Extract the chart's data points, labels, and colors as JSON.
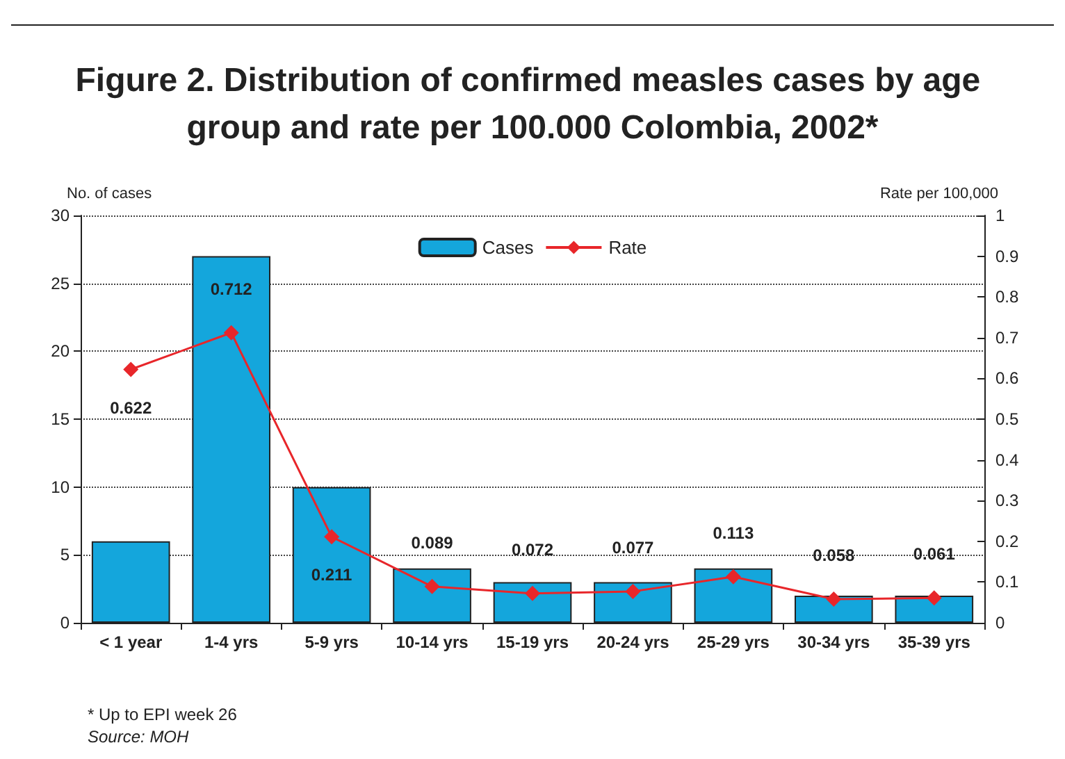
{
  "chart_data": {
    "type": "bar",
    "title": "Figure 2. Distribution of confirmed measles cases by age group and rate per 100.000 Colombia, 2002*",
    "ylabel": "No. of cases",
    "y2label": "Rate per 100,000",
    "categories": [
      "< 1 year",
      "1-4 yrs",
      "5-9 yrs",
      "10-14 yrs",
      "15-19 yrs",
      "20-24 yrs",
      "25-29 yrs",
      "30-34 yrs",
      "35-39 yrs"
    ],
    "series": [
      {
        "name": "Cases",
        "color": "#14a6dc",
        "values": [
          6,
          27,
          10,
          4,
          3,
          3,
          4,
          2,
          2
        ]
      },
      {
        "name": "Rate",
        "type": "line",
        "axis": "y2",
        "color": "#e8262a",
        "marker": "diamond",
        "values": [
          0.622,
          0.712,
          0.211,
          0.089,
          0.072,
          0.077,
          0.113,
          0.058,
          0.061
        ],
        "value_labels": [
          "0.622",
          "0.712",
          "0.211",
          "0.089",
          "0.072",
          "0.077",
          "0.113",
          "0.058",
          "0.061"
        ]
      }
    ],
    "ylim": [
      0,
      30
    ],
    "yticks": [
      0,
      5,
      10,
      15,
      20,
      25,
      30
    ],
    "y2lim": [
      0,
      1
    ],
    "y2ticks": [
      0,
      0.1,
      0.2,
      0.3,
      0.4,
      0.5,
      0.6,
      0.7,
      0.8,
      0.9,
      1
    ],
    "grid": "y",
    "legend": "top",
    "annotations": [
      "* Up to EPI week 26",
      "Source: MOH"
    ]
  }
}
